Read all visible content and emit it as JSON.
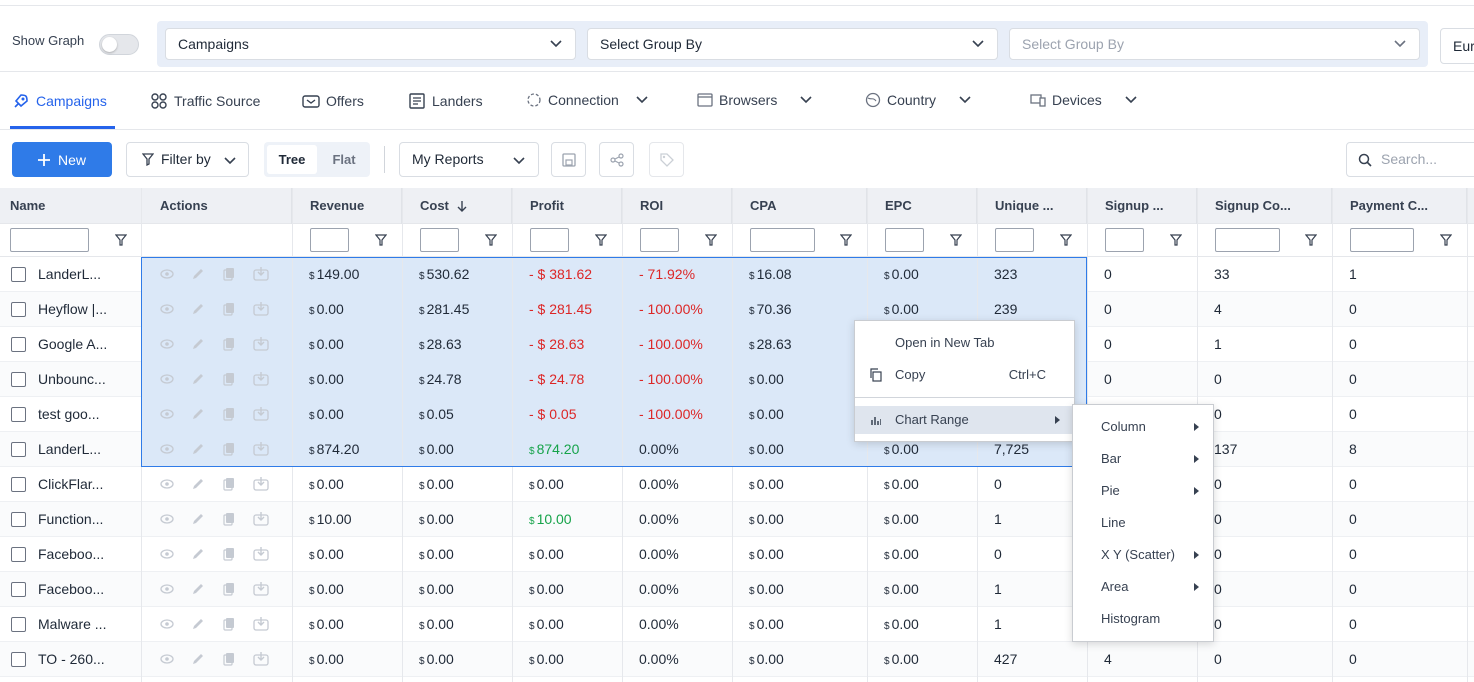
{
  "top": {
    "show_graph_label": "Show Graph",
    "group_by_1": "Campaigns",
    "group_by_2": "Select Group By",
    "group_by_3_placeholder": "Select Group By",
    "currency_selector": "Eur"
  },
  "tabs": [
    {
      "label": "Campaigns",
      "icon": "rocket-icon"
    },
    {
      "label": "Traffic Source",
      "icon": "grid-icon"
    },
    {
      "label": "Offers",
      "icon": "ticket-icon"
    },
    {
      "label": "Landers",
      "icon": "page-icon"
    },
    {
      "label": "Connection",
      "icon": "connection-icon"
    },
    {
      "label": "Browsers",
      "icon": "browser-icon"
    },
    {
      "label": "Country",
      "icon": "globe-icon"
    },
    {
      "label": "Devices",
      "icon": "devices-icon"
    }
  ],
  "toolbar": {
    "new_label": "New",
    "filter_label": "Filter by",
    "tree_label": "Tree",
    "flat_label": "Flat",
    "reports_label": "My Reports",
    "search_placeholder": "Search..."
  },
  "columns": [
    "Name",
    "Actions",
    "Revenue",
    "Cost",
    "Profit",
    "ROI",
    "CPA",
    "EPC",
    "Unique ...",
    "Signup ...",
    "Signup Co...",
    "Payment C..."
  ],
  "rows": [
    {
      "name": "LanderL...",
      "revenue": "149.00",
      "cost": "530.62",
      "profit": "- $ 381.62",
      "roi": "- 71.92%",
      "cpa": "16.08",
      "epc": "0.00",
      "unique": "323",
      "signup": "0",
      "signup_co": "33",
      "payment": "1",
      "selected": true,
      "profit_state": "neg"
    },
    {
      "name": "Heyflow |...",
      "revenue": "0.00",
      "cost": "281.45",
      "profit": "- $ 281.45",
      "roi": "- 100.00%",
      "cpa": "70.36",
      "epc": "0.00",
      "unique": "239",
      "signup": "0",
      "signup_co": "4",
      "payment": "0",
      "selected": true,
      "profit_state": "neg"
    },
    {
      "name": "Google A...",
      "revenue": "0.00",
      "cost": "28.63",
      "profit": "- $ 28.63",
      "roi": "- 100.00%",
      "cpa": "28.63",
      "epc": "",
      "unique": "",
      "signup": "0",
      "signup_co": "1",
      "payment": "0",
      "selected": true,
      "profit_state": "neg"
    },
    {
      "name": "Unbounc...",
      "revenue": "0.00",
      "cost": "24.78",
      "profit": "- $ 24.78",
      "roi": "- 100.00%",
      "cpa": "0.00",
      "epc": "",
      "unique": "",
      "signup": "0",
      "signup_co": "0",
      "payment": "0",
      "selected": true,
      "profit_state": "neg"
    },
    {
      "name": "test goo...",
      "revenue": "0.00",
      "cost": "0.05",
      "profit": "- $ 0.05",
      "roi": "- 100.00%",
      "cpa": "0.00",
      "epc": "",
      "unique": "",
      "signup": "",
      "signup_co": "0",
      "payment": "0",
      "selected": true,
      "profit_state": "neg"
    },
    {
      "name": "LanderL...",
      "revenue": "874.20",
      "cost": "0.00",
      "profit": "874.20",
      "roi": "0.00%",
      "cpa": "0.00",
      "epc": "0.00",
      "unique": "7,725",
      "signup": "",
      "signup_co": "137",
      "payment": "8",
      "selected": true,
      "profit_state": "pos"
    },
    {
      "name": "ClickFlar...",
      "revenue": "0.00",
      "cost": "0.00",
      "profit": "0.00",
      "roi": "0.00%",
      "cpa": "0.00",
      "epc": "0.00",
      "unique": "0",
      "signup": "",
      "signup_co": "0",
      "payment": "0",
      "selected": false,
      "profit_state": "zero"
    },
    {
      "name": "Function...",
      "revenue": "10.00",
      "cost": "0.00",
      "profit": "10.00",
      "roi": "0.00%",
      "cpa": "0.00",
      "epc": "0.00",
      "unique": "1",
      "signup": "",
      "signup_co": "0",
      "payment": "0",
      "selected": false,
      "profit_state": "pos"
    },
    {
      "name": "Faceboo...",
      "revenue": "0.00",
      "cost": "0.00",
      "profit": "0.00",
      "roi": "0.00%",
      "cpa": "0.00",
      "epc": "0.00",
      "unique": "0",
      "signup": "",
      "signup_co": "0",
      "payment": "0",
      "selected": false,
      "profit_state": "zero"
    },
    {
      "name": "Faceboo...",
      "revenue": "0.00",
      "cost": "0.00",
      "profit": "0.00",
      "roi": "0.00%",
      "cpa": "0.00",
      "epc": "0.00",
      "unique": "1",
      "signup": "",
      "signup_co": "0",
      "payment": "0",
      "selected": false,
      "profit_state": "zero"
    },
    {
      "name": "Malware ...",
      "revenue": "0.00",
      "cost": "0.00",
      "profit": "0.00",
      "roi": "0.00%",
      "cpa": "0.00",
      "epc": "0.00",
      "unique": "1",
      "signup": "",
      "signup_co": "0",
      "payment": "0",
      "selected": false,
      "profit_state": "zero"
    },
    {
      "name": "TO - 260...",
      "revenue": "0.00",
      "cost": "0.00",
      "profit": "0.00",
      "roi": "0.00%",
      "cpa": "0.00",
      "epc": "0.00",
      "unique": "427",
      "signup": "4",
      "signup_co": "0",
      "payment": "0",
      "selected": false,
      "profit_state": "zero"
    }
  ],
  "currency_symbol": "$",
  "context_menu": {
    "open_new_tab": "Open in New Tab",
    "copy": "Copy",
    "copy_shortcut": "Ctrl+C",
    "chart_range": "Chart Range"
  },
  "submenu": [
    {
      "label": "Column",
      "has_sub": true
    },
    {
      "label": "Bar",
      "has_sub": true
    },
    {
      "label": "Pie",
      "has_sub": true
    },
    {
      "label": "Line",
      "has_sub": false
    },
    {
      "label": "X Y (Scatter)",
      "has_sub": true
    },
    {
      "label": "Area",
      "has_sub": true
    },
    {
      "label": "Histogram",
      "has_sub": false
    }
  ],
  "colors": {
    "accent": "#2f7be8",
    "selection": "#dbe8f8",
    "negative": "#dc2626",
    "positive": "#16a34a"
  }
}
